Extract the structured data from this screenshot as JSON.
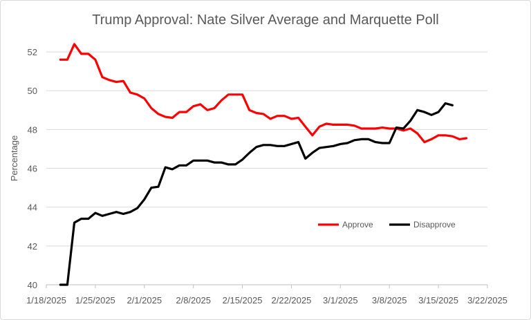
{
  "chart_data": {
    "type": "line",
    "title": "Trump Approval: Nate Silver Average and Marquette Poll",
    "xlabel": "",
    "ylabel": "Percentage",
    "ylim": [
      40,
      53
    ],
    "yticks": [
      40,
      42,
      44,
      46,
      48,
      50,
      52
    ],
    "xticks": [
      "1/18/2025",
      "1/25/2025",
      "2/1/2025",
      "2/8/2025",
      "2/15/2025",
      "2/22/2025",
      "3/1/2025",
      "3/8/2025",
      "3/15/2025",
      "3/22/2025"
    ],
    "xlim": [
      "2025-01-18",
      "2025-03-22"
    ],
    "grid": "horizontal",
    "legend_position": "bottom-right",
    "series": [
      {
        "name": "Approve",
        "color": "#ff0000",
        "points": [
          [
            "2025-01-20",
            51.6
          ],
          [
            "2025-01-21",
            51.6
          ],
          [
            "2025-01-22",
            52.4
          ],
          [
            "2025-01-23",
            51.9
          ],
          [
            "2025-01-24",
            51.9
          ],
          [
            "2025-01-25",
            51.6
          ],
          [
            "2025-01-26",
            50.7
          ],
          [
            "2025-01-27",
            50.55
          ],
          [
            "2025-01-28",
            50.45
          ],
          [
            "2025-01-29",
            50.5
          ],
          [
            "2025-01-30",
            49.9
          ],
          [
            "2025-01-31",
            49.8
          ],
          [
            "2025-02-01",
            49.6
          ],
          [
            "2025-02-02",
            49.1
          ],
          [
            "2025-02-03",
            48.8
          ],
          [
            "2025-02-04",
            48.65
          ],
          [
            "2025-02-05",
            48.6
          ],
          [
            "2025-02-06",
            48.9
          ],
          [
            "2025-02-07",
            48.9
          ],
          [
            "2025-02-08",
            49.2
          ],
          [
            "2025-02-09",
            49.3
          ],
          [
            "2025-02-10",
            49.0
          ],
          [
            "2025-02-11",
            49.1
          ],
          [
            "2025-02-12",
            49.5
          ],
          [
            "2025-02-13",
            49.8
          ],
          [
            "2025-02-14",
            49.8
          ],
          [
            "2025-02-15",
            49.8
          ],
          [
            "2025-02-16",
            49.0
          ],
          [
            "2025-02-17",
            48.85
          ],
          [
            "2025-02-18",
            48.8
          ],
          [
            "2025-02-19",
            48.55
          ],
          [
            "2025-02-20",
            48.7
          ],
          [
            "2025-02-21",
            48.7
          ],
          [
            "2025-02-22",
            48.55
          ],
          [
            "2025-02-23",
            48.6
          ],
          [
            "2025-02-24",
            48.15
          ],
          [
            "2025-02-25",
            47.7
          ],
          [
            "2025-02-26",
            48.15
          ],
          [
            "2025-02-27",
            48.3
          ],
          [
            "2025-02-28",
            48.25
          ],
          [
            "2025-03-01",
            48.25
          ],
          [
            "2025-03-02",
            48.25
          ],
          [
            "2025-03-03",
            48.2
          ],
          [
            "2025-03-04",
            48.05
          ],
          [
            "2025-03-05",
            48.05
          ],
          [
            "2025-03-06",
            48.05
          ],
          [
            "2025-03-07",
            48.1
          ],
          [
            "2025-03-08",
            48.05
          ],
          [
            "2025-03-09",
            48.05
          ],
          [
            "2025-03-10",
            47.95
          ],
          [
            "2025-03-11",
            48.05
          ],
          [
            "2025-03-12",
            47.8
          ],
          [
            "2025-03-13",
            47.35
          ],
          [
            "2025-03-14",
            47.5
          ],
          [
            "2025-03-15",
            47.7
          ],
          [
            "2025-03-16",
            47.7
          ],
          [
            "2025-03-17",
            47.65
          ],
          [
            "2025-03-18",
            47.5
          ],
          [
            "2025-03-19",
            47.55
          ]
        ]
      },
      {
        "name": "Disapprove",
        "color": "#000000",
        "points": [
          [
            "2025-01-20",
            40.0
          ],
          [
            "2025-01-21",
            40.0
          ],
          [
            "2025-01-22",
            43.2
          ],
          [
            "2025-01-23",
            43.4
          ],
          [
            "2025-01-24",
            43.4
          ],
          [
            "2025-01-25",
            43.7
          ],
          [
            "2025-01-26",
            43.55
          ],
          [
            "2025-01-27",
            43.65
          ],
          [
            "2025-01-28",
            43.75
          ],
          [
            "2025-01-29",
            43.65
          ],
          [
            "2025-01-30",
            43.75
          ],
          [
            "2025-01-31",
            43.95
          ],
          [
            "2025-02-01",
            44.4
          ],
          [
            "2025-02-02",
            45.0
          ],
          [
            "2025-02-03",
            45.05
          ],
          [
            "2025-02-04",
            46.05
          ],
          [
            "2025-02-05",
            45.95
          ],
          [
            "2025-02-06",
            46.15
          ],
          [
            "2025-02-07",
            46.15
          ],
          [
            "2025-02-08",
            46.4
          ],
          [
            "2025-02-09",
            46.4
          ],
          [
            "2025-02-10",
            46.4
          ],
          [
            "2025-02-11",
            46.3
          ],
          [
            "2025-02-12",
            46.3
          ],
          [
            "2025-02-13",
            46.2
          ],
          [
            "2025-02-14",
            46.2
          ],
          [
            "2025-02-15",
            46.45
          ],
          [
            "2025-02-16",
            46.8
          ],
          [
            "2025-02-17",
            47.1
          ],
          [
            "2025-02-18",
            47.2
          ],
          [
            "2025-02-19",
            47.2
          ],
          [
            "2025-02-20",
            47.15
          ],
          [
            "2025-02-21",
            47.15
          ],
          [
            "2025-02-22",
            47.25
          ],
          [
            "2025-02-23",
            47.35
          ],
          [
            "2025-02-24",
            46.5
          ],
          [
            "2025-02-25",
            46.8
          ],
          [
            "2025-02-26",
            47.05
          ],
          [
            "2025-02-27",
            47.1
          ],
          [
            "2025-02-28",
            47.15
          ],
          [
            "2025-03-01",
            47.25
          ],
          [
            "2025-03-02",
            47.3
          ],
          [
            "2025-03-03",
            47.45
          ],
          [
            "2025-03-04",
            47.5
          ],
          [
            "2025-03-05",
            47.5
          ],
          [
            "2025-03-06",
            47.35
          ],
          [
            "2025-03-07",
            47.3
          ],
          [
            "2025-03-08",
            47.3
          ],
          [
            "2025-03-09",
            48.1
          ],
          [
            "2025-03-10",
            48.05
          ],
          [
            "2025-03-11",
            48.45
          ],
          [
            "2025-03-12",
            49.0
          ],
          [
            "2025-03-13",
            48.9
          ],
          [
            "2025-03-14",
            48.75
          ],
          [
            "2025-03-15",
            48.9
          ],
          [
            "2025-03-16",
            49.35
          ],
          [
            "2025-03-17",
            49.25
          ]
        ]
      }
    ]
  }
}
